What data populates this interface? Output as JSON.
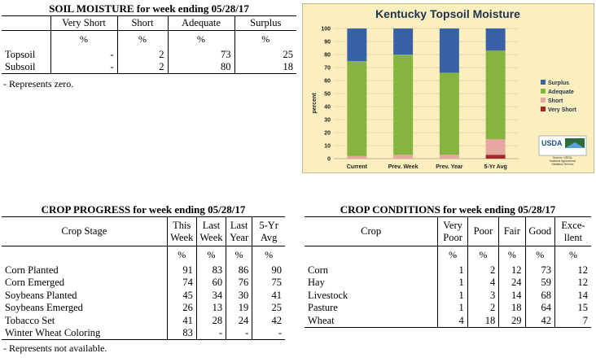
{
  "soil": {
    "title": "SOIL MOISTURE for week ending 05/28/17",
    "headers": [
      "Very Short",
      "Short",
      "Adequate",
      "Surplus"
    ],
    "units": [
      "%",
      "%",
      "%",
      "%"
    ],
    "rows": [
      {
        "label": "Topsoil",
        "values": [
          "-",
          "2",
          "73",
          "25"
        ]
      },
      {
        "label": "Subsoil",
        "values": [
          "-",
          "2",
          "80",
          "18"
        ]
      }
    ],
    "note": "- Represents zero."
  },
  "progress": {
    "title": "CROP PROGRESS for week ending 05/28/17",
    "stage_header": "Crop Stage",
    "headers": [
      [
        "This",
        "Week"
      ],
      [
        "Last",
        "Week"
      ],
      [
        "Last",
        "Year"
      ],
      [
        "5-Yr",
        "Avg"
      ]
    ],
    "units": [
      "%",
      "%",
      "%",
      "%"
    ],
    "rows": [
      {
        "label": "Corn Planted",
        "values": [
          "91",
          "83",
          "86",
          "90"
        ]
      },
      {
        "label": "Corn Emerged",
        "values": [
          "74",
          "60",
          "76",
          "75"
        ]
      },
      {
        "label": "Soybeans Planted",
        "values": [
          "45",
          "34",
          "30",
          "41"
        ]
      },
      {
        "label": "Soybeans Emerged",
        "values": [
          "26",
          "13",
          "19",
          "25"
        ]
      },
      {
        "label": "Tobacco Set",
        "values": [
          "41",
          "28",
          "24",
          "42"
        ]
      },
      {
        "label": "Winter Wheat Coloring",
        "values": [
          "83",
          "-",
          "-",
          "-"
        ]
      }
    ],
    "note": "- Represents not available."
  },
  "conditions": {
    "title": "CROP CONDITIONS for week ending 05/28/17",
    "crop_header": "Crop",
    "headers": [
      [
        "Very",
        "Poor"
      ],
      [
        "Poor"
      ],
      [
        "Fair"
      ],
      [
        "Good"
      ],
      [
        "Exce-",
        "llent"
      ]
    ],
    "units": [
      "%",
      "%",
      "%",
      "%",
      "%"
    ],
    "rows": [
      {
        "label": "Corn",
        "values": [
          "1",
          "2",
          "12",
          "73",
          "12"
        ]
      },
      {
        "label": "Hay",
        "values": [
          "1",
          "4",
          "24",
          "59",
          "12"
        ]
      },
      {
        "label": "Livestock",
        "values": [
          "1",
          "3",
          "14",
          "68",
          "14"
        ]
      },
      {
        "label": "Pasture",
        "values": [
          "1",
          "2",
          "18",
          "64",
          "15"
        ]
      },
      {
        "label": "Wheat",
        "values": [
          "4",
          "18",
          "29",
          "42",
          "7"
        ]
      }
    ]
  },
  "chart_data": {
    "type": "bar",
    "stacked": true,
    "title": "Kentucky Topsoil Moisture",
    "ylabel": "percent",
    "ylim": [
      0,
      100
    ],
    "yticks": [
      "0",
      "10",
      "20",
      "30",
      "40",
      "50",
      "60",
      "70",
      "80",
      "90",
      "100"
    ],
    "categories": [
      "Current",
      "Prev. Week",
      "Prev. Year",
      "5-Yr Avg"
    ],
    "series": [
      {
        "name": "Very Short",
        "color": "#a4282b",
        "values": [
          0,
          0,
          0,
          3
        ]
      },
      {
        "name": "Short",
        "color": "#e6a7a0",
        "values": [
          2,
          3,
          3,
          12
        ]
      },
      {
        "name": "Adequate",
        "color": "#86b43e",
        "values": [
          73,
          77,
          63,
          68
        ]
      },
      {
        "name": "Surplus",
        "color": "#3a60a6",
        "values": [
          25,
          20,
          34,
          17
        ]
      }
    ],
    "legend_order": [
      "Surplus",
      "Adequate",
      "Short",
      "Very Short"
    ],
    "legend_position": "right",
    "logo": "USDA",
    "logo_lines": [
      "Source: USDA,",
      "National Agricultural",
      "Statistics Service"
    ]
  }
}
